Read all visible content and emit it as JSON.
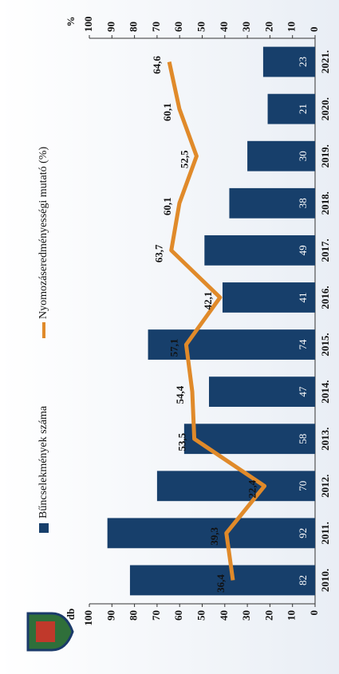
{
  "chart_data": {
    "type": "bar",
    "categories": [
      "2010.",
      "2011.",
      "2012.",
      "2013.",
      "2014.",
      "2015.",
      "2016.",
      "2017.",
      "2018.",
      "2019.",
      "2020.",
      "2021."
    ],
    "series": [
      {
        "name": "Bűncselekmények száma",
        "type": "bar",
        "color": "#173f6b",
        "values": [
          82,
          92,
          70,
          58,
          47,
          74,
          41,
          49,
          38,
          30,
          21,
          23
        ]
      },
      {
        "name": "Nyomozáseredményességi mutató (%)",
        "type": "line",
        "axis": "y2",
        "color": "#e08a2a",
        "values": [
          36.4,
          39.3,
          22.4,
          53.5,
          54.4,
          57.1,
          42.1,
          63.7,
          60.1,
          52.5,
          60.1,
          64.6
        ],
        "value_labels": [
          "36,4",
          "39,3",
          "22,4",
          "53,5",
          "54,4",
          "57,1",
          "42,1",
          "63,7",
          "60,1",
          "52,5",
          "60,1",
          "64,6"
        ]
      }
    ],
    "ylabel": "db",
    "y2label": "%",
    "ylim": [
      0,
      100
    ],
    "yticks": [
      0,
      10,
      20,
      30,
      40,
      50,
      60,
      70,
      80,
      90,
      100
    ],
    "y2lim": [
      0,
      100
    ],
    "y2ticks": [
      0,
      10,
      20,
      30,
      40,
      50,
      60,
      70,
      80,
      90,
      100
    ]
  }
}
